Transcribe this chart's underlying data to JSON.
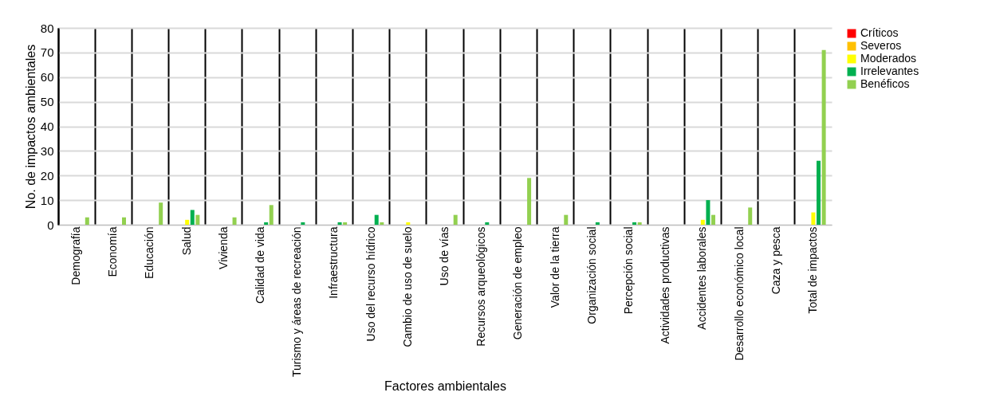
{
  "chart_data": {
    "type": "bar",
    "xlabel": "Factores ambientales",
    "ylabel": "No. de impactos ambientales",
    "categories": [
      "Demografía",
      "Economía",
      "Educación",
      "Salud",
      "Vivienda",
      "Calidad de vida",
      "Turismo y áreas de recreación",
      "Infraestructura",
      "Uso del recurso hídrico",
      "Cambio de uso de suelo",
      "Uso de vías",
      "Recursos arqueológicos",
      "Generación de empleo",
      "Valor de la tierra",
      "Organización social",
      "Percepción social",
      "Actividades productivas",
      "Accidentes laborales",
      "Desarrollo económico local",
      "Caza y pesca",
      "Total de impactos"
    ],
    "series": [
      {
        "name": "Críticos",
        "color": "#ff0000",
        "values": [
          0,
          0,
          0,
          0,
          0,
          0,
          0,
          0,
          0,
          0,
          0,
          0,
          0,
          0,
          0,
          0,
          0,
          0,
          0,
          0,
          0
        ]
      },
      {
        "name": "Severos",
        "color": "#ffc000",
        "values": [
          0,
          0,
          0,
          0,
          0,
          0,
          0,
          0,
          0,
          0,
          0,
          0,
          0,
          0,
          0,
          0,
          0,
          0,
          0,
          0,
          0
        ]
      },
      {
        "name": "Moderados",
        "color": "#ffff00",
        "values": [
          0,
          0,
          0,
          2,
          0,
          0,
          0,
          0,
          0,
          1,
          0,
          0,
          0,
          0,
          0,
          0,
          0,
          2,
          0,
          0,
          5
        ]
      },
      {
        "name": "Irrelevantes",
        "color": "#00b050",
        "values": [
          0,
          0,
          0,
          6,
          0,
          1,
          1,
          1,
          4,
          0,
          0,
          1,
          0,
          0,
          1,
          1,
          0,
          10,
          0,
          0,
          26
        ]
      },
      {
        "name": "Benéficos",
        "color": "#92d050",
        "values": [
          3,
          3,
          9,
          4,
          3,
          8,
          0,
          1,
          1,
          0,
          4,
          0,
          19,
          4,
          0,
          1,
          0,
          4,
          7,
          0,
          71
        ]
      }
    ],
    "ylim": [
      0,
      80
    ],
    "yticks": [
      0,
      10,
      20,
      30,
      40,
      50,
      60,
      70,
      80
    ],
    "grid": true,
    "legend": "right"
  }
}
